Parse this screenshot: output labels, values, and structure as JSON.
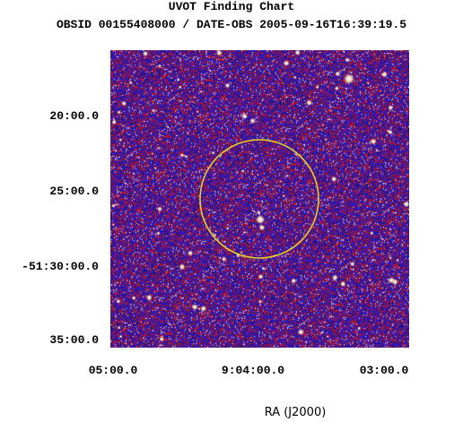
{
  "title": "UVOT Finding Chart",
  "subtitle": "OBSID 00155408000 / DATE-OBS 2005-09-16T16:39:19.5",
  "y_ticks": [
    "20:00.0",
    "25:00.0",
    "-51:30:00.0",
    "35:00.0"
  ],
  "x_ticks": [
    "05:00.0",
    "9:04:00.0",
    "03:00.0"
  ],
  "x_axis_label": "RA (J2000)",
  "colors": {
    "background": "#2a2088",
    "noise_red": "#d01818",
    "noise_blue": "#1010e0",
    "noise_white": "#ffffff",
    "circle": "#e8d020"
  }
}
